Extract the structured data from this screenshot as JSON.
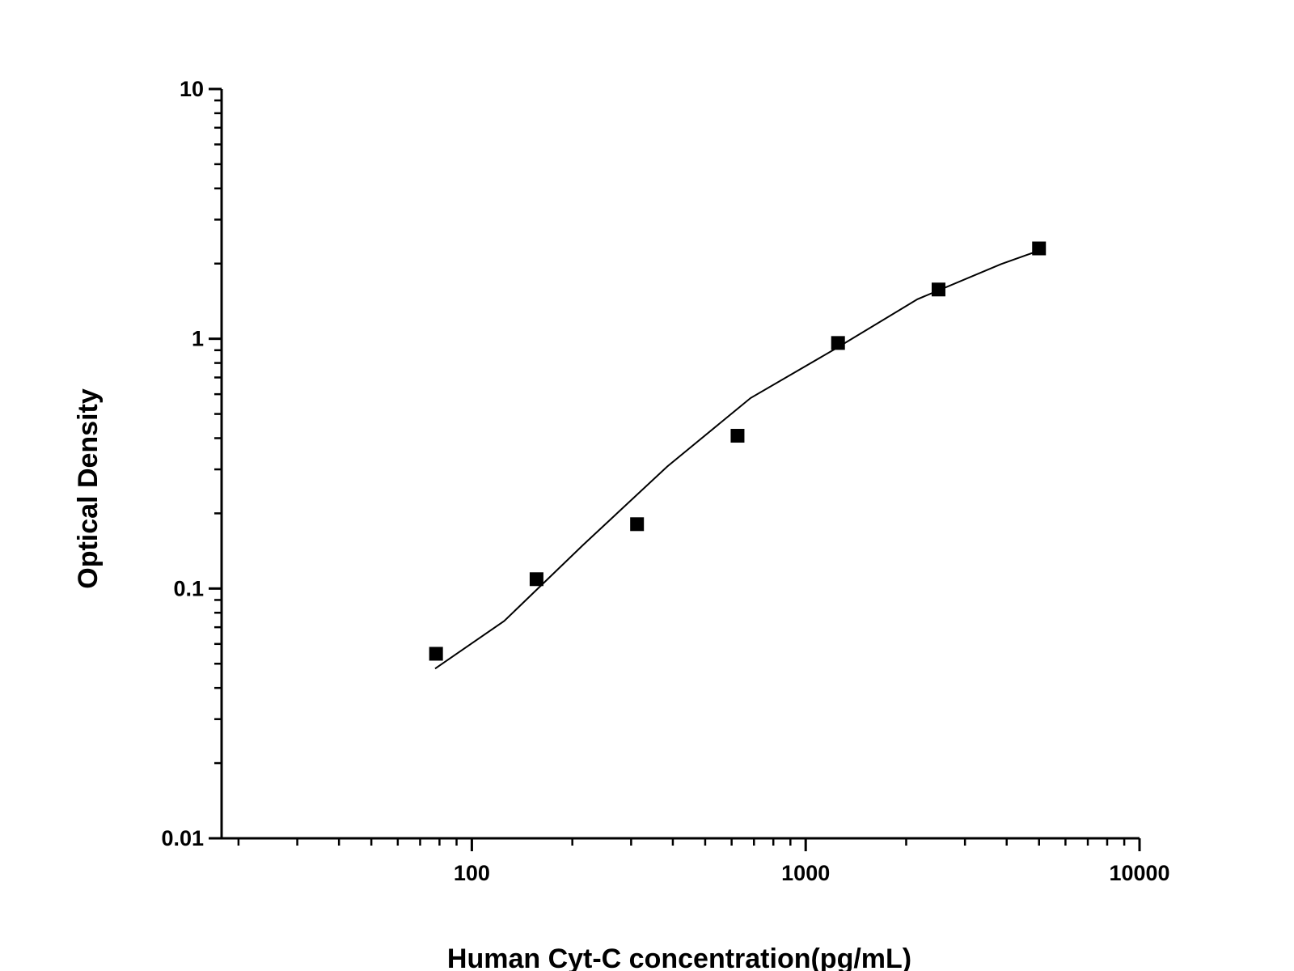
{
  "chart_data": {
    "type": "scatter",
    "x_label": "Human Cyt-C concentration(pg/mL)",
    "y_label": "Optical Density",
    "xscale": "log",
    "yscale": "log",
    "xlim": [
      17.8,
      10000
    ],
    "ylim": [
      0.01,
      10
    ],
    "xticks": [
      100,
      1000,
      10000
    ],
    "yticks": [
      0.01,
      0.1,
      1,
      10
    ],
    "xminorticks": [
      20,
      30,
      40,
      50,
      60,
      70,
      80,
      90,
      200,
      300,
      400,
      500,
      600,
      700,
      800,
      900,
      2000,
      3000,
      4000,
      5000,
      6000,
      7000,
      8000,
      9000
    ],
    "yminorticks": [
      0.02,
      0.03,
      0.04,
      0.05,
      0.06,
      0.07,
      0.08,
      0.09,
      0.2,
      0.3,
      0.4,
      0.5,
      0.6,
      0.7,
      0.8,
      0.9,
      2,
      3,
      4,
      5,
      6,
      7,
      8,
      9
    ],
    "points": {
      "color": "#000000",
      "x": [
        78.125,
        156.25,
        312.5,
        625,
        1250,
        2500,
        5000
      ],
      "values": [
        0.0548,
        0.109,
        0.181,
        0.409,
        0.962,
        1.575,
        2.3
      ]
    },
    "fit": {
      "color": "#000000",
      "x": [
        77.6,
        125,
        216,
        385,
        684,
        1216,
        2162,
        3846,
        4980
      ],
      "values": [
        0.0478,
        0.0741,
        0.15,
        0.308,
        0.579,
        0.905,
        1.44,
        1.99,
        2.25
      ]
    }
  }
}
